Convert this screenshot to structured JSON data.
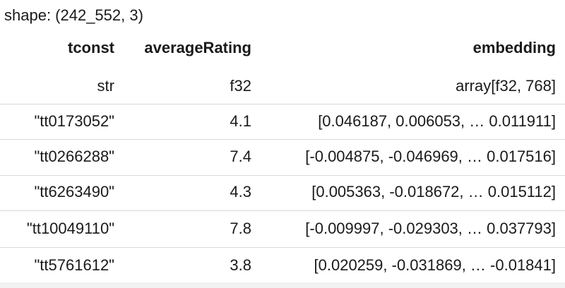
{
  "shape": "shape: (242_552, 3)",
  "table": {
    "columns": [
      {
        "name": "tconst",
        "dtype": "str"
      },
      {
        "name": "averageRating",
        "dtype": "f32"
      },
      {
        "name": "embedding",
        "dtype": "array[f32, 768]"
      }
    ],
    "rows": [
      [
        "\"tt0173052\"",
        "4.1",
        "[0.046187, 0.006053, … 0.011911]"
      ],
      [
        "\"tt0266288\"",
        "7.4",
        "[-0.004875, -0.046969, … 0.017516]"
      ],
      [
        "\"tt6263490\"",
        "4.3",
        "[0.005363, -0.018672, … 0.015112]"
      ],
      [
        "\"tt10049110\"",
        "7.8",
        "[-0.009997, -0.029303, … 0.037793]"
      ],
      [
        "\"tt5761612\"",
        "3.8",
        "[0.020259, -0.031869, … -0.01841]"
      ]
    ]
  }
}
